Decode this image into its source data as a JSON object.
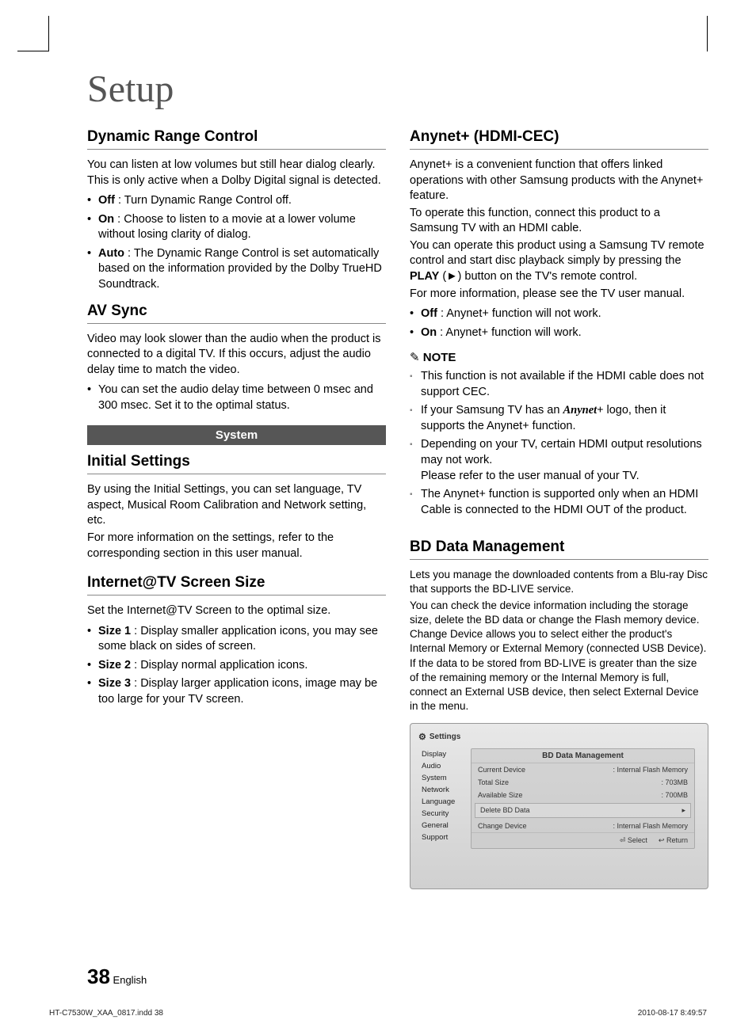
{
  "page_title": "Setup",
  "left": {
    "drc": {
      "h": "Dynamic Range Control",
      "intro": "You can listen at low volumes but still hear dialog clearly. This is only active when a Dolby Digital signal is detected.",
      "items": [
        {
          "b": "Off",
          "t": " : Turn Dynamic Range Control off."
        },
        {
          "b": "On",
          "t": " : Choose to listen to a movie at a lower volume without losing clarity of dialog."
        },
        {
          "b": "Auto",
          "t": " : The Dynamic Range Control is set automatically based on the information provided by the Dolby TrueHD Soundtrack."
        }
      ]
    },
    "av": {
      "h": "AV Sync",
      "intro": "Video may look slower than the audio when the product is connected to a digital TV. If this occurs, adjust the audio delay time to match the video.",
      "items": [
        {
          "b": "",
          "t": "You can set the audio delay time between 0 msec and 300 msec. Set it to the optimal status."
        }
      ]
    },
    "system_box": "System",
    "init": {
      "h": "Initial Settings",
      "p1": "By using the Initial Settings, you can set language, TV aspect, Musical Room Calibration and Network setting, etc.",
      "p2": "For more information on the settings, refer to the corresponding section in this user manual."
    },
    "itv": {
      "h": "Internet@TV Screen Size",
      "intro": "Set the Internet@TV Screen to the optimal size.",
      "items": [
        {
          "b": "Size 1",
          "t": " : Display smaller application icons, you may see some black on sides of screen."
        },
        {
          "b": "Size 2",
          "t": " : Display normal application icons."
        },
        {
          "b": "Size 3",
          "t": " : Display larger application icons, image may be too large for your TV screen."
        }
      ]
    }
  },
  "right": {
    "any": {
      "h": "Anynet+ (HDMI-CEC)",
      "p1": "Anynet+ is a convenient function that offers linked operations with other Samsung products with the Anynet+ feature.",
      "p2": "To operate this function, connect this product to a Samsung TV with an HDMI cable.",
      "p3a": "You can operate this product using a Samsung TV remote control and start disc playback simply by pressing the ",
      "p3b": "PLAY",
      "p3c": " (►) button on the TV's remote control.",
      "p4": "For more information, please see the TV user manual.",
      "items": [
        {
          "b": "Off",
          "t": " : Anynet+ function will not work."
        },
        {
          "b": "On",
          "t": " : Anynet+ function will work."
        }
      ],
      "note_h": "NOTE",
      "notes": [
        "This function is not available if the HDMI cable does not support CEC.",
        {
          "a": "If your Samsung TV has an ",
          "logo": "Anynet+",
          "b": " logo, then it supports the Anynet+ function."
        },
        "Depending on your TV, certain HDMI output resolutions may not work.\nPlease refer to the user manual of your TV.",
        "The Anynet+ function is supported only when an HDMI Cable is connected to the HDMI OUT of the product."
      ]
    },
    "bd": {
      "h": "BD Data Management",
      "p1": "Lets you manage the downloaded contents from a Blu-ray Disc that supports the BD-LIVE service.",
      "p2": "You can check the device information including the storage size, delete the BD data or change the Flash memory device. Change Device allows you to select either the product's Internal Memory or External Memory (connected USB Device). If the data to be stored from BD-LIVE is greater than the size of the remaining memory or the Internal Memory is full, connect an External USB device, then select External Device in the menu."
    },
    "ss": {
      "title": "Settings",
      "side": [
        "Display",
        "Audio",
        "System",
        "Network",
        "Language",
        "Security",
        "General",
        "Support"
      ],
      "panel_h": "BD Data Management",
      "rows": [
        {
          "k": "Current Device",
          "v": ": Internal Flash Memory"
        },
        {
          "k": "Total Size",
          "v": ": 703MB"
        },
        {
          "k": "Available Size",
          "v": ": 700MB"
        }
      ],
      "boxed": {
        "k": "Delete BD Data",
        "v": "▸"
      },
      "row4": {
        "k": "Change Device",
        "v": ": Internal Flash Memory"
      },
      "foot": [
        {
          "icon": "⏎",
          "label": "Select"
        },
        {
          "icon": "↩",
          "label": "Return"
        }
      ]
    }
  },
  "page_num": "38",
  "page_lang": "English",
  "footer_left": "HT-C7530W_XAA_0817.indd   38",
  "footer_right": "2010-08-17      8:49:57",
  "colors": {
    "box_bg": "#565656",
    "box_fg": "#ffffff",
    "rule": "#888888",
    "ss_bg_top": "#e8e8e8",
    "ss_bg_bottom": "#d0d0d0"
  }
}
